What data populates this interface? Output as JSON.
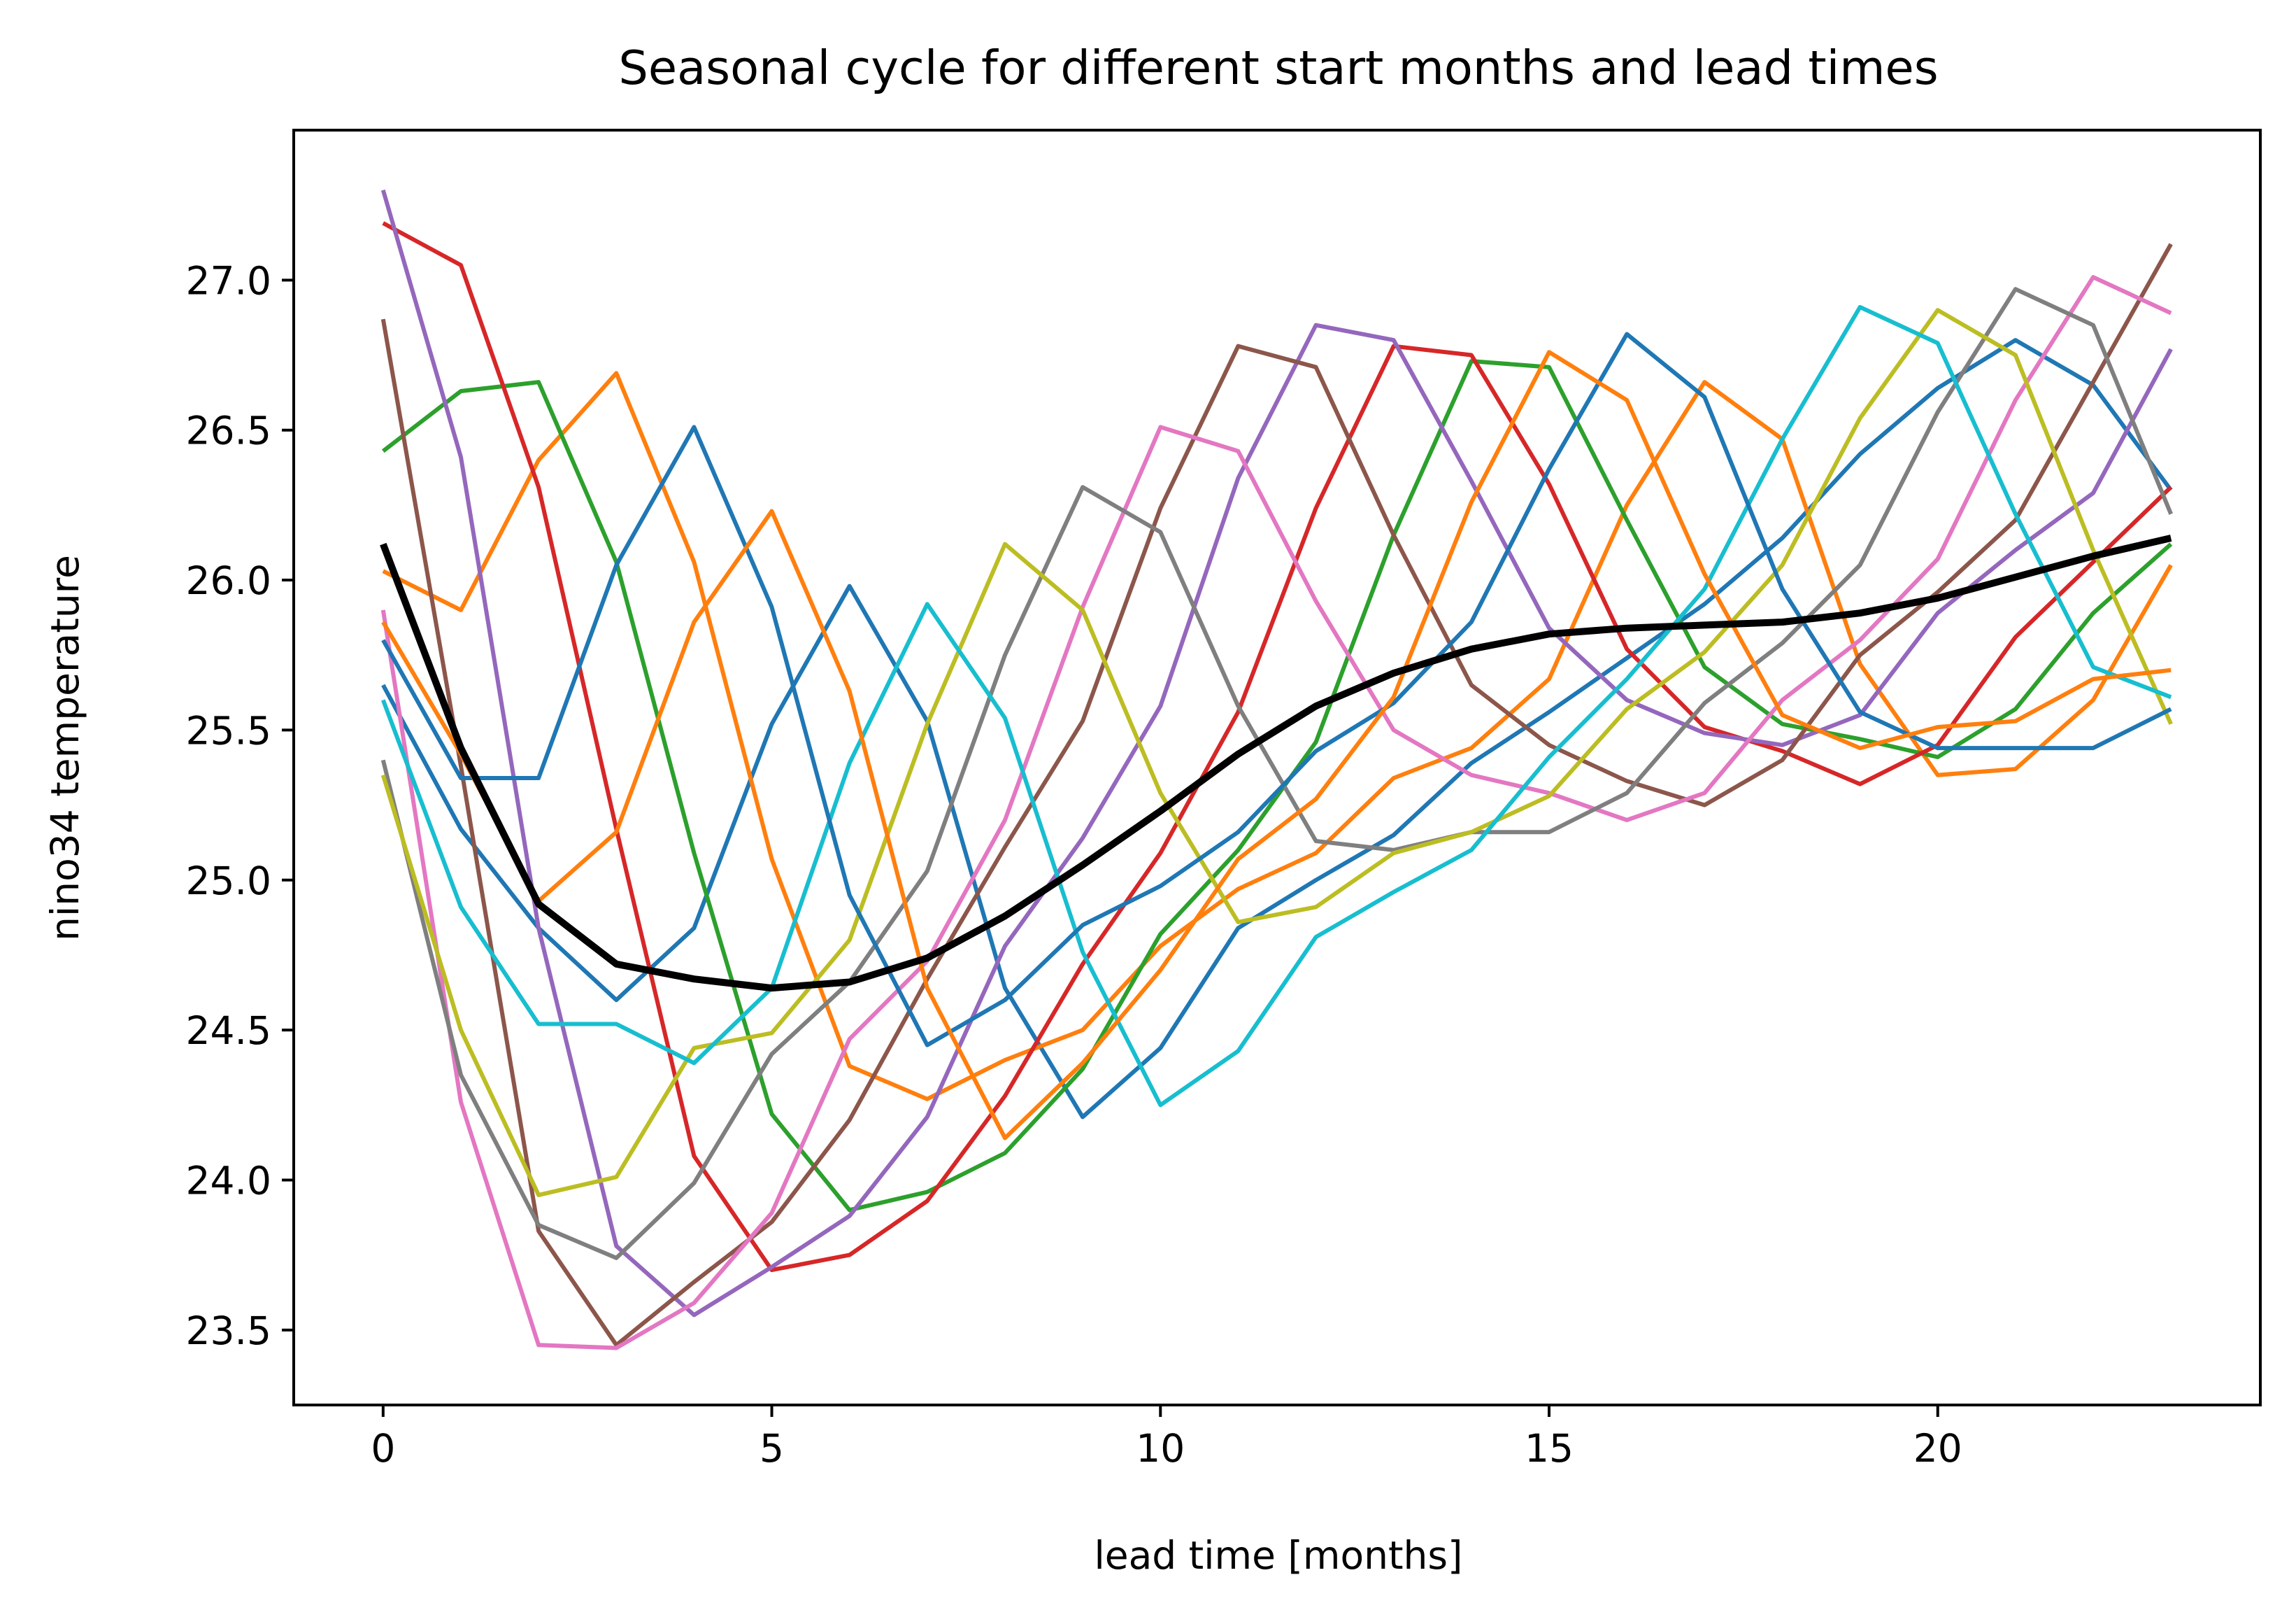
{
  "chart_data": {
    "type": "line",
    "title": "Seasonal cycle for different start months and lead times",
    "xlabel": "lead time [months]",
    "ylabel": "nino34 temperature",
    "xlim": [
      -1.15,
      24.15
    ],
    "ylim": [
      23.25,
      27.5
    ],
    "xticks": [
      0,
      5,
      10,
      15,
      20
    ],
    "yticks": [
      23.5,
      24.0,
      24.5,
      25.0,
      25.5,
      26.0,
      26.5,
      27.0
    ],
    "x": [
      0,
      1,
      2,
      3,
      4,
      5,
      6,
      7,
      8,
      9,
      10,
      11,
      12,
      13,
      14,
      15,
      16,
      17,
      18,
      19,
      20,
      21,
      22,
      23
    ],
    "grid": false,
    "legend": "none",
    "series": [
      {
        "color": "#1f77b4",
        "values": [
          25.65,
          25.17,
          24.84,
          24.6,
          24.84,
          25.52,
          25.98,
          25.53,
          24.64,
          24.21,
          24.44,
          24.84,
          25.0,
          25.15,
          25.39,
          25.56,
          25.74,
          25.92,
          26.14,
          26.42,
          26.64,
          26.8,
          26.65,
          26.3
        ]
      },
      {
        "color": "#ff7f0e",
        "values": [
          26.03,
          25.9,
          26.4,
          26.69,
          26.06,
          25.07,
          24.38,
          24.27,
          24.4,
          24.5,
          24.78,
          24.97,
          25.09,
          25.34,
          25.44,
          25.67,
          26.25,
          26.66,
          26.47,
          25.72,
          25.35,
          25.37,
          25.6,
          26.05
        ]
      },
      {
        "color": "#2ca02c",
        "values": [
          26.43,
          26.63,
          26.66,
          26.06,
          25.09,
          24.22,
          23.9,
          23.96,
          24.09,
          24.37,
          24.82,
          25.1,
          25.46,
          26.15,
          26.73,
          26.71,
          26.2,
          25.71,
          25.52,
          25.47,
          25.41,
          25.57,
          25.89,
          26.12
        ]
      },
      {
        "color": "#d62728",
        "values": [
          27.19,
          27.05,
          26.31,
          25.17,
          24.08,
          23.7,
          23.75,
          23.93,
          24.28,
          24.72,
          25.09,
          25.56,
          26.24,
          26.78,
          26.75,
          26.32,
          25.77,
          25.51,
          25.43,
          25.32,
          25.45,
          25.81,
          26.06,
          26.31
        ]
      },
      {
        "color": "#9467bd",
        "values": [
          27.3,
          26.41,
          24.84,
          23.78,
          23.55,
          23.71,
          23.88,
          24.21,
          24.78,
          25.14,
          25.58,
          26.34,
          26.85,
          26.8,
          26.33,
          25.84,
          25.6,
          25.49,
          25.45,
          25.55,
          25.89,
          26.1,
          26.29,
          26.77
        ]
      },
      {
        "color": "#8c564b",
        "values": [
          26.87,
          25.38,
          23.83,
          23.45,
          23.66,
          23.86,
          24.2,
          24.67,
          25.11,
          25.53,
          26.24,
          26.78,
          26.71,
          26.15,
          25.65,
          25.45,
          25.33,
          25.25,
          25.4,
          25.75,
          25.96,
          26.2,
          26.66,
          27.12
        ]
      },
      {
        "color": "#e377c2",
        "values": [
          25.9,
          24.26,
          23.45,
          23.44,
          23.59,
          23.89,
          24.47,
          24.73,
          25.2,
          25.91,
          26.51,
          26.43,
          25.93,
          25.5,
          25.35,
          25.29,
          25.2,
          25.29,
          25.6,
          25.8,
          26.07,
          26.6,
          27.01,
          26.89
        ]
      },
      {
        "color": "#7f7f7f",
        "values": [
          25.4,
          24.35,
          23.85,
          23.74,
          23.99,
          24.42,
          24.66,
          25.03,
          25.75,
          26.31,
          26.16,
          25.58,
          25.13,
          25.1,
          25.16,
          25.16,
          25.29,
          25.59,
          25.79,
          26.05,
          26.56,
          26.97,
          26.85,
          26.22
        ]
      },
      {
        "color": "#bcbd22",
        "values": [
          25.35,
          24.5,
          23.95,
          24.01,
          24.44,
          24.49,
          24.8,
          25.52,
          26.12,
          25.9,
          25.29,
          24.86,
          24.91,
          25.09,
          25.16,
          25.28,
          25.57,
          25.76,
          26.05,
          26.54,
          26.9,
          26.75,
          26.1,
          25.52
        ]
      },
      {
        "color": "#17becf",
        "values": [
          25.6,
          24.91,
          24.52,
          24.52,
          24.39,
          24.64,
          25.39,
          25.92,
          25.54,
          24.76,
          24.25,
          24.43,
          24.81,
          24.96,
          25.1,
          25.41,
          25.67,
          25.97,
          26.47,
          26.91,
          26.79,
          26.22,
          25.71,
          25.61
        ]
      },
      {
        "color": "#1f77b4",
        "values": [
          25.8,
          25.34,
          25.34,
          26.05,
          26.51,
          25.91,
          24.95,
          24.45,
          24.6,
          24.85,
          24.98,
          25.16,
          25.43,
          25.59,
          25.86,
          26.37,
          26.82,
          26.61,
          25.97,
          25.56,
          25.44,
          25.44,
          25.44,
          25.57
        ]
      },
      {
        "color": "#ff7f0e",
        "values": [
          25.86,
          25.42,
          24.93,
          25.16,
          25.86,
          26.23,
          25.63,
          24.64,
          24.14,
          24.39,
          24.7,
          25.07,
          25.27,
          25.61,
          26.26,
          26.76,
          26.6,
          26.02,
          25.55,
          25.44,
          25.51,
          25.53,
          25.67,
          25.7
        ]
      },
      {
        "color": "#000000",
        "width": 10,
        "values": [
          26.12,
          25.44,
          24.92,
          24.72,
          24.67,
          24.64,
          24.66,
          24.74,
          24.88,
          25.05,
          25.23,
          25.42,
          25.58,
          25.69,
          25.77,
          25.82,
          25.84,
          25.85,
          25.86,
          25.89,
          25.94,
          26.01,
          26.08,
          26.14
        ]
      }
    ]
  }
}
